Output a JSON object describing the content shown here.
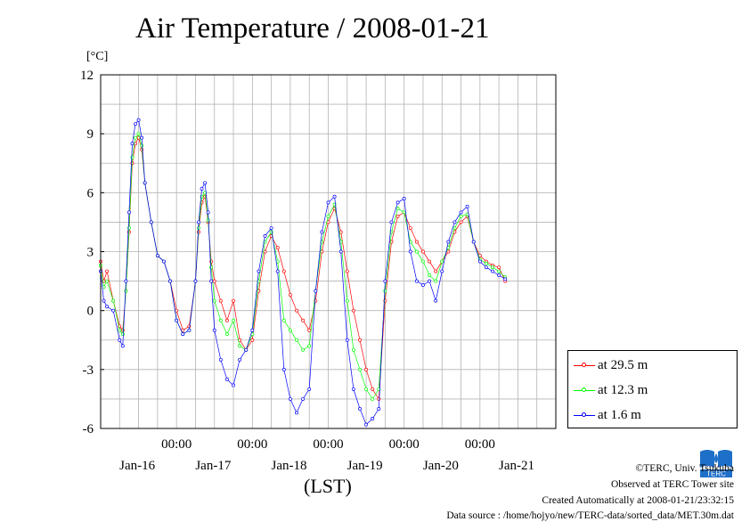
{
  "chart_data": {
    "type": "line",
    "title": "Air Temperature / 2008-01-21",
    "ylabel": "[°C]",
    "xlabel": "(LST)",
    "ylim": [
      -6,
      12
    ],
    "yticks": [
      "12",
      "9",
      "6",
      "3",
      "0",
      "-3",
      "-6"
    ],
    "xlim_hours": [
      0,
      144
    ],
    "xticks": [
      {
        "hour": 24,
        "time": "00:00",
        "date": "Jan-16"
      },
      {
        "hour": 48,
        "time": "00:00",
        "date": "Jan-17"
      },
      {
        "hour": 72,
        "time": "00:00",
        "date": "Jan-18"
      },
      {
        "hour": 96,
        "time": "00:00",
        "date": "Jan-19"
      },
      {
        "hour": 120,
        "time": "00:00",
        "date": "Jan-20"
      },
      {
        "hour": 144,
        "time": "",
        "date": "Jan-21"
      }
    ],
    "grid": true,
    "legend_position": "bottom-right, outside plot",
    "series": [
      {
        "name": "at 29.5 m",
        "color": "#ff0000",
        "points": [
          [
            0,
            2.5
          ],
          [
            1,
            1.5
          ],
          [
            2,
            2.0
          ],
          [
            4,
            0.5
          ],
          [
            6,
            -0.8
          ],
          [
            7,
            -1.0
          ],
          [
            8,
            1.0
          ],
          [
            9,
            4.0
          ],
          [
            10,
            7.5
          ],
          [
            11,
            8.5
          ],
          [
            12,
            8.8
          ],
          [
            13,
            8.2
          ],
          [
            14,
            6.5
          ],
          [
            16,
            4.5
          ],
          [
            18,
            2.8
          ],
          [
            20,
            2.5
          ],
          [
            22,
            1.5
          ],
          [
            24,
            0.0
          ],
          [
            26,
            -1.0
          ],
          [
            28,
            -0.8
          ],
          [
            30,
            1.5
          ],
          [
            31,
            4.0
          ],
          [
            32,
            5.5
          ],
          [
            33,
            5.8
          ],
          [
            34,
            4.5
          ],
          [
            35,
            2.5
          ],
          [
            36,
            1.5
          ],
          [
            38,
            0.5
          ],
          [
            40,
            -0.5
          ],
          [
            42,
            0.5
          ],
          [
            44,
            -1.5
          ],
          [
            46,
            -2.0
          ],
          [
            48,
            -1.5
          ],
          [
            50,
            1.0
          ],
          [
            52,
            3.0
          ],
          [
            54,
            3.8
          ],
          [
            56,
            3.2
          ],
          [
            58,
            2.0
          ],
          [
            60,
            0.8
          ],
          [
            62,
            0.0
          ],
          [
            64,
            -0.5
          ],
          [
            66,
            -1.0
          ],
          [
            68,
            0.5
          ],
          [
            70,
            3.0
          ],
          [
            72,
            4.5
          ],
          [
            74,
            5.2
          ],
          [
            76,
            4.0
          ],
          [
            78,
            2.0
          ],
          [
            80,
            0.0
          ],
          [
            82,
            -1.5
          ],
          [
            84,
            -3.0
          ],
          [
            86,
            -4.0
          ],
          [
            88,
            -4.5
          ],
          [
            90,
            0.5
          ],
          [
            92,
            3.5
          ],
          [
            94,
            4.8
          ],
          [
            96,
            5.0
          ],
          [
            98,
            4.2
          ],
          [
            100,
            3.5
          ],
          [
            102,
            3.0
          ],
          [
            104,
            2.5
          ],
          [
            106,
            2.0
          ],
          [
            108,
            2.5
          ],
          [
            110,
            3.0
          ],
          [
            112,
            4.0
          ],
          [
            114,
            4.5
          ],
          [
            116,
            4.8
          ],
          [
            118,
            3.5
          ],
          [
            120,
            2.8
          ],
          [
            122,
            2.5
          ],
          [
            124,
            2.3
          ],
          [
            126,
            2.2
          ],
          [
            128,
            1.5
          ]
        ]
      },
      {
        "name": "at 12.3 m",
        "color": "#00ff00",
        "points": [
          [
            0,
            2.3
          ],
          [
            1,
            1.2
          ],
          [
            2,
            1.5
          ],
          [
            4,
            0.5
          ],
          [
            6,
            -1.0
          ],
          [
            7,
            -1.2
          ],
          [
            8,
            1.0
          ],
          [
            9,
            4.2
          ],
          [
            10,
            7.8
          ],
          [
            11,
            8.8
          ],
          [
            12,
            9.0
          ],
          [
            13,
            8.4
          ],
          [
            14,
            6.5
          ],
          [
            16,
            4.5
          ],
          [
            18,
            2.8
          ],
          [
            20,
            2.5
          ],
          [
            22,
            1.5
          ],
          [
            24,
            -0.5
          ],
          [
            26,
            -1.2
          ],
          [
            28,
            -1.0
          ],
          [
            30,
            1.5
          ],
          [
            31,
            4.2
          ],
          [
            32,
            5.8
          ],
          [
            33,
            6.0
          ],
          [
            34,
            4.6
          ],
          [
            35,
            2.2
          ],
          [
            36,
            0.5
          ],
          [
            38,
            -0.5
          ],
          [
            40,
            -1.2
          ],
          [
            42,
            -0.5
          ],
          [
            44,
            -1.8
          ],
          [
            46,
            -2.0
          ],
          [
            48,
            -1.2
          ],
          [
            50,
            1.5
          ],
          [
            52,
            3.5
          ],
          [
            54,
            4.0
          ],
          [
            56,
            2.5
          ],
          [
            58,
            -0.5
          ],
          [
            60,
            -1.0
          ],
          [
            62,
            -1.5
          ],
          [
            64,
            -2.0
          ],
          [
            66,
            -1.8
          ],
          [
            68,
            1.0
          ],
          [
            70,
            3.5
          ],
          [
            72,
            4.8
          ],
          [
            74,
            5.4
          ],
          [
            76,
            3.5
          ],
          [
            78,
            0.5
          ],
          [
            80,
            -2.0
          ],
          [
            82,
            -3.0
          ],
          [
            84,
            -4.0
          ],
          [
            86,
            -4.5
          ],
          [
            88,
            -4.0
          ],
          [
            90,
            1.0
          ],
          [
            92,
            4.0
          ],
          [
            94,
            5.2
          ],
          [
            96,
            5.0
          ],
          [
            98,
            3.5
          ],
          [
            100,
            3.0
          ],
          [
            102,
            2.5
          ],
          [
            104,
            1.8
          ],
          [
            106,
            1.5
          ],
          [
            108,
            2.5
          ],
          [
            110,
            3.2
          ],
          [
            112,
            4.2
          ],
          [
            114,
            4.8
          ],
          [
            116,
            4.9
          ],
          [
            118,
            3.5
          ],
          [
            120,
            2.6
          ],
          [
            122,
            2.4
          ],
          [
            124,
            2.2
          ],
          [
            126,
            2.0
          ],
          [
            128,
            1.7
          ]
        ]
      },
      {
        "name": "at 1.6 m",
        "color": "#0000ff",
        "points": [
          [
            0,
            2.0
          ],
          [
            1,
            0.5
          ],
          [
            2,
            0.2
          ],
          [
            4,
            0.0
          ],
          [
            6,
            -1.5
          ],
          [
            7,
            -1.8
          ],
          [
            8,
            1.5
          ],
          [
            9,
            5.0
          ],
          [
            10,
            8.5
          ],
          [
            11,
            9.5
          ],
          [
            12,
            9.7
          ],
          [
            13,
            8.8
          ],
          [
            14,
            6.5
          ],
          [
            16,
            4.5
          ],
          [
            18,
            2.8
          ],
          [
            20,
            2.5
          ],
          [
            22,
            1.5
          ],
          [
            24,
            -0.5
          ],
          [
            26,
            -1.2
          ],
          [
            28,
            -1.0
          ],
          [
            30,
            1.5
          ],
          [
            31,
            4.5
          ],
          [
            32,
            6.2
          ],
          [
            33,
            6.5
          ],
          [
            34,
            5.0
          ],
          [
            35,
            1.5
          ],
          [
            36,
            -1.0
          ],
          [
            38,
            -2.5
          ],
          [
            40,
            -3.5
          ],
          [
            42,
            -3.8
          ],
          [
            44,
            -2.5
          ],
          [
            46,
            -2.0
          ],
          [
            48,
            -1.0
          ],
          [
            50,
            2.0
          ],
          [
            52,
            3.8
          ],
          [
            54,
            4.2
          ],
          [
            56,
            2.0
          ],
          [
            58,
            -3.0
          ],
          [
            60,
            -4.5
          ],
          [
            62,
            -5.2
          ],
          [
            64,
            -4.5
          ],
          [
            66,
            -4.0
          ],
          [
            68,
            1.0
          ],
          [
            70,
            4.0
          ],
          [
            72,
            5.5
          ],
          [
            74,
            5.8
          ],
          [
            76,
            3.0
          ],
          [
            78,
            -1.5
          ],
          [
            80,
            -4.0
          ],
          [
            82,
            -5.0
          ],
          [
            84,
            -5.8
          ],
          [
            86,
            -5.5
          ],
          [
            88,
            -5.0
          ],
          [
            90,
            1.5
          ],
          [
            92,
            4.5
          ],
          [
            94,
            5.5
          ],
          [
            96,
            5.7
          ],
          [
            98,
            3.0
          ],
          [
            100,
            1.5
          ],
          [
            102,
            1.3
          ],
          [
            104,
            1.5
          ],
          [
            106,
            0.5
          ],
          [
            108,
            2.0
          ],
          [
            110,
            3.5
          ],
          [
            112,
            4.5
          ],
          [
            114,
            5.0
          ],
          [
            116,
            5.3
          ],
          [
            118,
            3.5
          ],
          [
            120,
            2.5
          ],
          [
            122,
            2.2
          ],
          [
            124,
            2.0
          ],
          [
            126,
            1.8
          ],
          [
            128,
            1.6
          ]
        ]
      }
    ]
  },
  "credits": {
    "line1": "©TERC, Univ. Tsukuba",
    "line2": "Observed at TERC Tower site",
    "line3": "Created Automatically at 2008-01-21/23:32:15",
    "line4": "Data source : /home/hojyo/new/TERC-data/sorted_data/MET.30m.dat",
    "logo_text": "TERC"
  }
}
